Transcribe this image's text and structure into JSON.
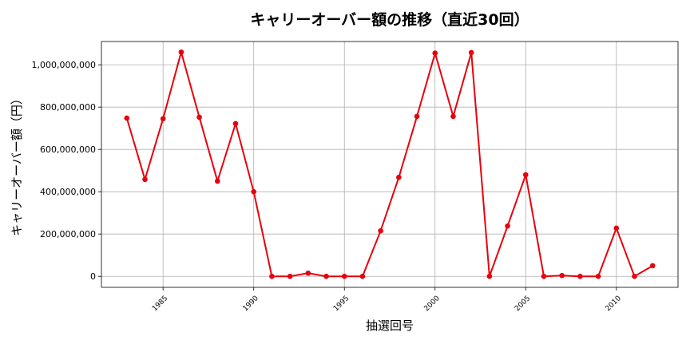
{
  "chart_data": {
    "type": "line",
    "title": "キャリーオーバー額の推移（直近30回）",
    "xlabel": "抽選回号",
    "ylabel": "キャリーオーバー額（円）",
    "xlim": [
      1981.6,
      2013.4
    ],
    "ylim": [
      -52000000,
      1110000000
    ],
    "x_ticks": [
      1985,
      1990,
      1995,
      2000,
      2005,
      2010
    ],
    "x_tick_labels": [
      "1985",
      "1990",
      "1995",
      "2000",
      "2005",
      "2010"
    ],
    "y_ticks": [
      0,
      200000000,
      400000000,
      600000000,
      800000000,
      1000000000
    ],
    "y_tick_labels": [
      "0",
      "200,000,000",
      "400,000,000",
      "600,000,000",
      "800,000,000",
      "1,000,000,000"
    ],
    "grid": true,
    "line_color": "#e8000b",
    "series": [
      {
        "x": [
          1983,
          1984,
          1985,
          1986,
          1987,
          1988,
          1989,
          1990,
          1991,
          1992,
          1993,
          1994,
          1995,
          1996,
          1997,
          1998,
          1999,
          2000,
          2001,
          2002,
          2003,
          2004,
          2005,
          2006,
          2007,
          2008,
          2009,
          2010,
          2011,
          2012
        ],
        "values": [
          748000000,
          458000000,
          745000000,
          1060000000,
          752000000,
          450000000,
          722000000,
          400000000,
          0,
          0,
          15000000,
          0,
          0,
          0,
          215000000,
          468000000,
          756000000,
          1055000000,
          756000000,
          1058000000,
          0,
          238000000,
          480000000,
          0,
          4000000,
          0,
          0,
          228000000,
          0,
          50000000
        ]
      }
    ]
  }
}
